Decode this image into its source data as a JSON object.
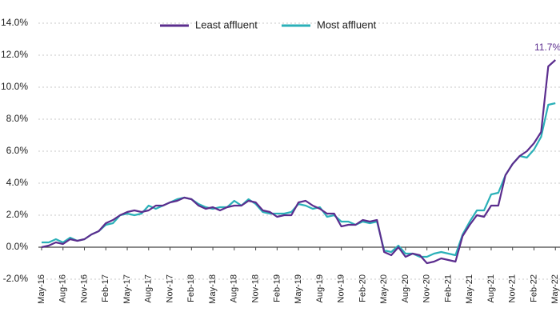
{
  "chart_data": {
    "type": "line",
    "categories": [
      "May-16",
      null,
      null,
      "Aug-16",
      null,
      null,
      "Nov-16",
      null,
      null,
      "Feb-17",
      null,
      null,
      "May-17",
      null,
      null,
      "Aug-17",
      null,
      null,
      "Nov-17",
      null,
      null,
      "Feb-18",
      null,
      null,
      "May-18",
      null,
      null,
      "Aug-18",
      null,
      null,
      "Nov-18",
      null,
      null,
      "Feb-19",
      null,
      null,
      "May-19",
      null,
      null,
      "Aug-19",
      null,
      null,
      "Nov-19",
      null,
      null,
      "Feb-20",
      null,
      null,
      "May-20",
      null,
      null,
      "Aug-20",
      null,
      null,
      "Nov-20",
      null,
      null,
      "Feb-21",
      null,
      null,
      "May-21",
      null,
      null,
      "Aug-21",
      null,
      null,
      "Nov-21",
      null,
      null,
      "Feb-22",
      null,
      null,
      "May-22"
    ],
    "series": [
      {
        "name": "Least affluent",
        "color": "#5b2d8e",
        "values": [
          0.0,
          0.1,
          0.3,
          0.2,
          0.5,
          0.4,
          0.5,
          0.8,
          1.0,
          1.5,
          1.7,
          2.0,
          2.2,
          2.3,
          2.2,
          2.3,
          2.6,
          2.6,
          2.8,
          2.9,
          3.1,
          3.0,
          2.6,
          2.4,
          2.5,
          2.3,
          2.5,
          2.6,
          2.6,
          2.9,
          2.8,
          2.3,
          2.2,
          1.9,
          2.0,
          2.0,
          2.8,
          2.9,
          2.6,
          2.4,
          2.1,
          2.1,
          1.3,
          1.4,
          1.4,
          1.7,
          1.6,
          1.7,
          -0.3,
          -0.5,
          0.0,
          -0.6,
          -0.4,
          -0.5,
          -1.0,
          -0.9,
          -0.7,
          -0.8,
          -0.9,
          0.7,
          1.4,
          2.0,
          1.9,
          2.6,
          2.6,
          4.5,
          5.2,
          5.7,
          6.0,
          6.5,
          7.2,
          11.3,
          11.7
        ]
      },
      {
        "name": "Most affluent",
        "color": "#2bb0b8",
        "values": [
          0.3,
          0.3,
          0.5,
          0.3,
          0.6,
          0.4,
          0.5,
          0.8,
          1.0,
          1.4,
          1.5,
          2.0,
          2.1,
          2.0,
          2.1,
          2.6,
          2.4,
          2.6,
          2.8,
          3.0,
          3.1,
          3.0,
          2.7,
          2.5,
          2.4,
          2.5,
          2.5,
          2.9,
          2.6,
          3.0,
          2.7,
          2.2,
          2.1,
          2.1,
          2.1,
          2.2,
          2.7,
          2.6,
          2.4,
          2.5,
          1.9,
          2.0,
          1.6,
          1.6,
          1.4,
          1.6,
          1.5,
          1.6,
          -0.2,
          -0.3,
          0.1,
          -0.4,
          -0.4,
          -0.6,
          -0.6,
          -0.4,
          -0.3,
          -0.4,
          -0.5,
          0.8,
          1.6,
          2.3,
          2.3,
          3.3,
          3.4,
          4.5,
          5.2,
          5.7,
          5.6,
          6.1,
          6.9,
          8.9,
          9.0
        ]
      }
    ],
    "annotations": [
      {
        "text": "11.7%"
      }
    ],
    "ylim": [
      -2,
      14
    ],
    "yticks": [
      {
        "value": -2,
        "label": "-2.0%"
      },
      {
        "value": 0,
        "label": "0.0%"
      },
      {
        "value": 2,
        "label": "2.0%"
      },
      {
        "value": 4,
        "label": "4.0%"
      },
      {
        "value": 6,
        "label": "6.0%"
      },
      {
        "value": 8,
        "label": "8.0%"
      },
      {
        "value": 10,
        "label": "10.0%"
      },
      {
        "value": 12,
        "label": "12.0%"
      },
      {
        "value": 14,
        "label": "14.0%"
      }
    ],
    "grid": true,
    "legend": "top"
  }
}
